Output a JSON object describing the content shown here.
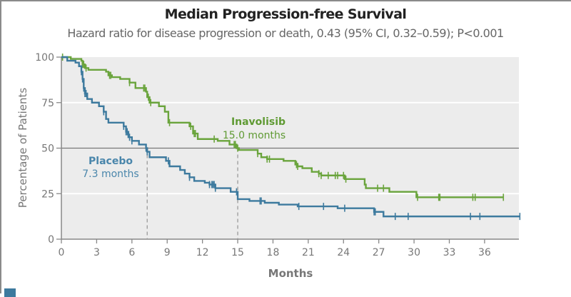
{
  "chart_data": {
    "type": "line",
    "subtype": "kaplan-meier step",
    "title": "Median Progression-free Survival",
    "subtitle": "Hazard ratio for disease progression or death, 0.43 (95% CI, 0.32–0.59); P<0.001",
    "xlabel": "Months",
    "ylabel": "Percentage of Patients",
    "xlim": [
      0,
      39
    ],
    "ylim": [
      0,
      100
    ],
    "xticks": [
      0,
      3,
      6,
      9,
      12,
      15,
      18,
      21,
      24,
      27,
      30,
      33,
      36
    ],
    "yticks": [
      0,
      25,
      50,
      75,
      100
    ],
    "grid": "horizontal",
    "reference_line_y": 50,
    "series": [
      {
        "name": "Inavolisib",
        "annotation": "15.0 months",
        "median": 15.0,
        "color": "#6aa43c",
        "steps": [
          [
            0,
            100
          ],
          [
            0.8,
            99
          ],
          [
            1.7,
            98
          ],
          [
            1.8,
            96
          ],
          [
            2.0,
            94
          ],
          [
            2.3,
            93
          ],
          [
            3.8,
            92
          ],
          [
            4.0,
            90
          ],
          [
            4.3,
            89
          ],
          [
            5.0,
            88
          ],
          [
            5.8,
            86
          ],
          [
            6.3,
            83
          ],
          [
            7.2,
            81
          ],
          [
            7.3,
            78
          ],
          [
            7.5,
            75
          ],
          [
            8.3,
            73
          ],
          [
            8.8,
            70
          ],
          [
            9.1,
            64
          ],
          [
            10.9,
            62
          ],
          [
            11.2,
            58
          ],
          [
            11.6,
            55
          ],
          [
            13.3,
            54
          ],
          [
            14.3,
            52
          ],
          [
            14.9,
            50
          ],
          [
            15.1,
            49
          ],
          [
            16.7,
            47
          ],
          [
            17.0,
            45
          ],
          [
            17.5,
            44
          ],
          [
            18.9,
            43
          ],
          [
            19.9,
            41
          ],
          [
            20.1,
            40
          ],
          [
            20.5,
            39
          ],
          [
            21.3,
            37
          ],
          [
            21.9,
            36
          ],
          [
            22.1,
            35
          ],
          [
            24.1,
            33
          ],
          [
            25.8,
            30
          ],
          [
            25.9,
            28
          ],
          [
            27.9,
            26
          ],
          [
            30.2,
            23
          ],
          [
            37.6,
            23
          ]
        ],
        "censored": [
          0.1,
          1.8,
          1.9,
          2.1,
          4.1,
          4.2,
          5.8,
          7.0,
          7.1,
          7.4,
          7.6,
          9.2,
          11.0,
          11.3,
          11.4,
          13.0,
          14.7,
          14.8,
          15.0,
          16.7,
          17.5,
          17.7,
          20.0,
          20.1,
          21.9,
          22.1,
          22.7,
          23.3,
          23.5,
          24.0,
          24.2,
          26.9,
          27.4,
          30.3,
          32.1,
          32.2,
          35.0,
          35.2,
          37.6
        ]
      },
      {
        "name": "Placebo",
        "annotation": "7.3 months",
        "median": 7.3,
        "color": "#3d7a9e",
        "steps": [
          [
            0,
            100
          ],
          [
            0.5,
            98
          ],
          [
            1.2,
            97
          ],
          [
            1.5,
            95
          ],
          [
            1.7,
            92
          ],
          [
            1.8,
            88
          ],
          [
            1.9,
            83
          ],
          [
            2.0,
            80
          ],
          [
            2.2,
            77
          ],
          [
            2.6,
            75
          ],
          [
            3.2,
            73
          ],
          [
            3.6,
            70
          ],
          [
            3.8,
            66
          ],
          [
            4.0,
            64
          ],
          [
            5.3,
            62
          ],
          [
            5.5,
            59
          ],
          [
            5.7,
            56
          ],
          [
            6.0,
            54
          ],
          [
            6.6,
            52
          ],
          [
            7.2,
            50
          ],
          [
            7.3,
            48
          ],
          [
            7.5,
            45
          ],
          [
            8.9,
            43
          ],
          [
            9.2,
            40
          ],
          [
            10.1,
            38
          ],
          [
            10.5,
            36
          ],
          [
            10.9,
            34
          ],
          [
            11.3,
            32
          ],
          [
            12.2,
            31
          ],
          [
            12.6,
            30
          ],
          [
            13.1,
            28
          ],
          [
            14.4,
            26
          ],
          [
            15.0,
            22
          ],
          [
            16.0,
            21
          ],
          [
            17.3,
            20
          ],
          [
            18.5,
            19
          ],
          [
            20.1,
            18
          ],
          [
            23.5,
            17
          ],
          [
            26.6,
            15
          ],
          [
            27.4,
            12.5
          ],
          [
            39,
            12.5
          ]
        ],
        "censored": [
          1.7,
          1.8,
          1.9,
          2.0,
          2.1,
          3.6,
          5.3,
          5.5,
          5.6,
          5.8,
          6.0,
          7.2,
          7.3,
          9.1,
          10.9,
          12.6,
          12.8,
          12.9,
          13.0,
          13.1,
          14.9,
          16.9,
          17.0,
          20.2,
          22.3,
          24.1,
          26.6,
          26.7,
          28.4,
          29.5,
          34.8,
          35.6,
          39
        ]
      }
    ]
  }
}
